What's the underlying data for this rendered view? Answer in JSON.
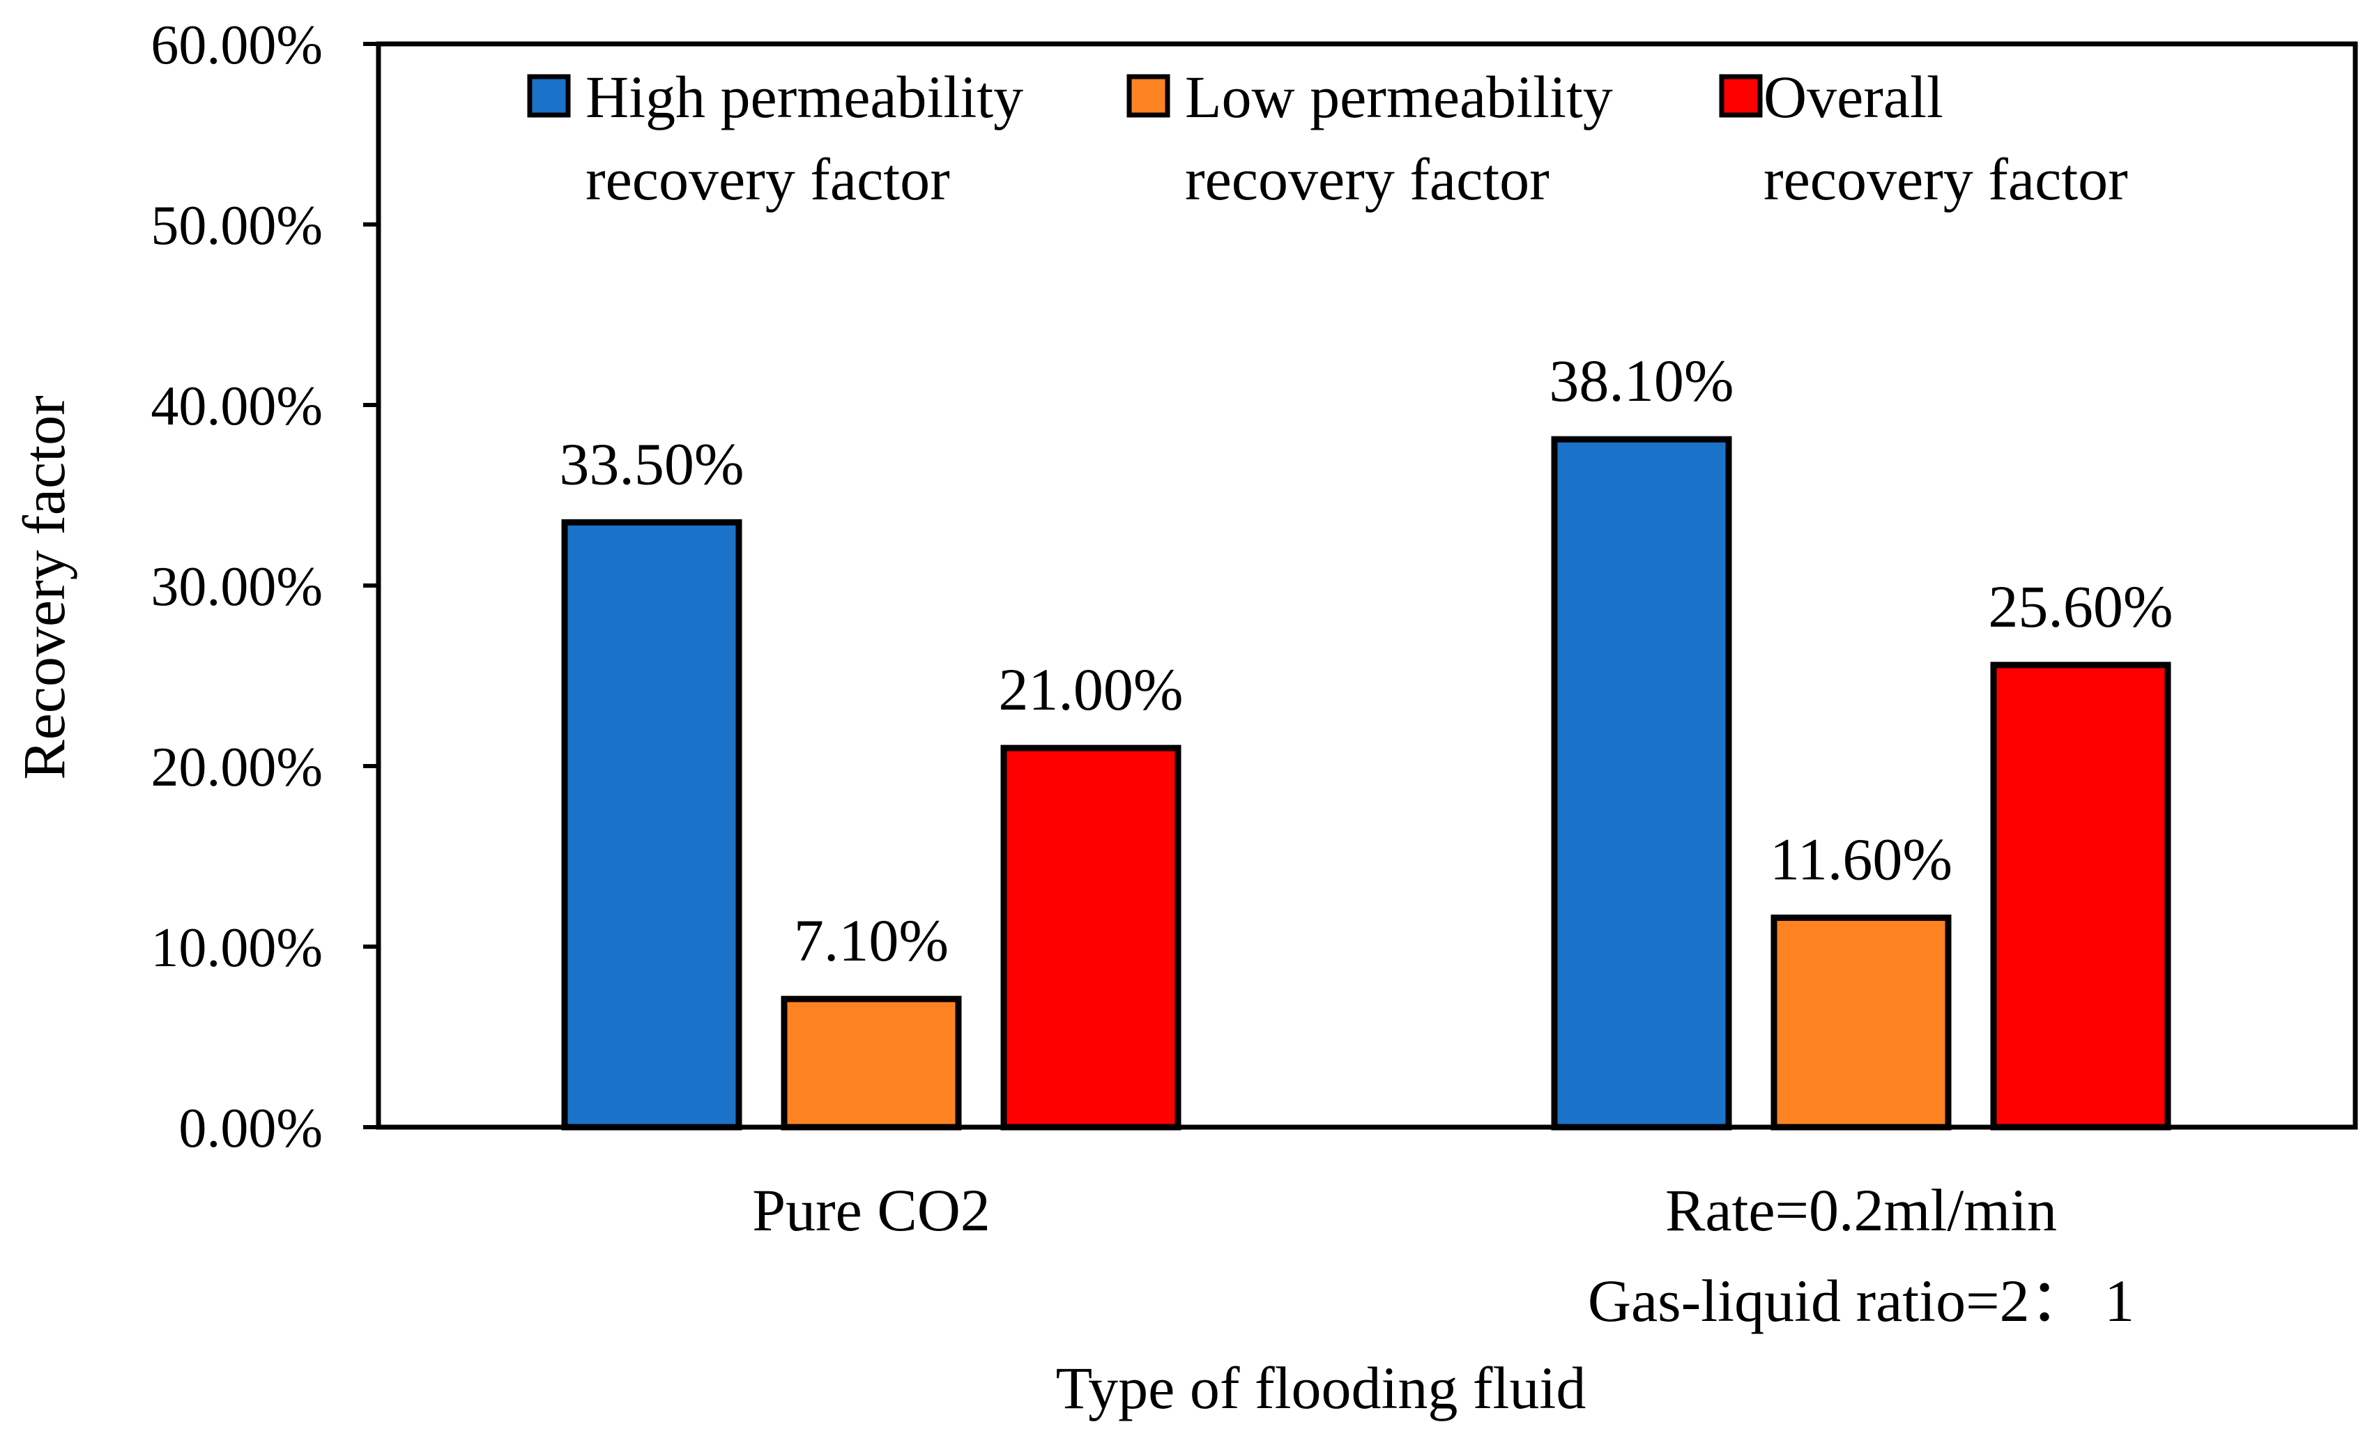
{
  "chart_data": {
    "type": "bar",
    "title": "",
    "xlabel": "Type of flooding fluid",
    "ylabel": "Recovery factor",
    "ylim": [
      0,
      60
    ],
    "yticks": [
      "0.00%",
      "10.00%",
      "20.00%",
      "30.00%",
      "40.00%",
      "50.00%",
      "60.00%"
    ],
    "yticks_values": [
      0,
      10,
      20,
      30,
      40,
      50,
      60
    ],
    "grid": false,
    "legend_position": "top",
    "categories": [
      {
        "lines": [
          "Pure CO2"
        ]
      },
      {
        "lines": [
          "Rate=0.2ml/min",
          "Gas-liquid ratio=2： 1"
        ]
      }
    ],
    "series": [
      {
        "name_lines": [
          "High permeability",
          "recovery factor"
        ],
        "color": "#1b72c9",
        "values": [
          33.5,
          38.1
        ],
        "labels": [
          "33.50%",
          "38.10%"
        ]
      },
      {
        "name_lines": [
          "Low permeability",
          "recovery factor"
        ],
        "color": "#fd8322",
        "values": [
          7.1,
          11.6
        ],
        "labels": [
          "7.10%",
          "11.60%"
        ]
      },
      {
        "name_lines": [
          "Overall",
          "recovery factor"
        ],
        "color": "#ff0000",
        "values": [
          21.0,
          25.6
        ],
        "labels": [
          "21.00%",
          "25.60%"
        ]
      }
    ]
  }
}
